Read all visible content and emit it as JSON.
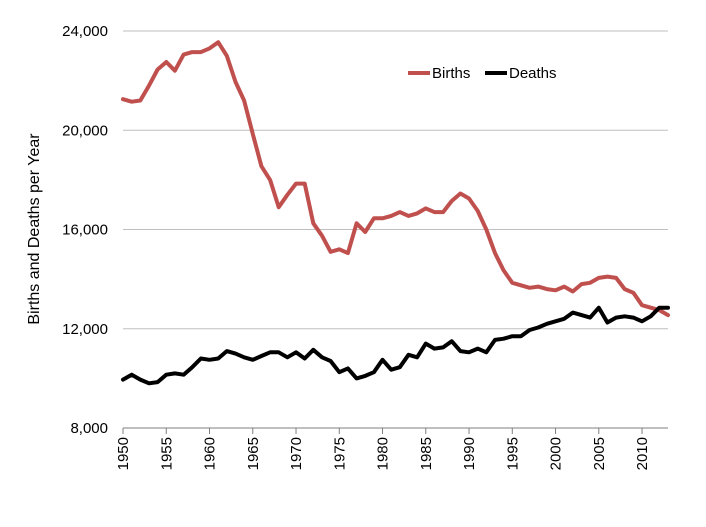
{
  "chart_data": {
    "type": "line",
    "title": "",
    "xlabel": "",
    "ylabel": "Births and Deaths per Year",
    "xlim": [
      1950,
      2013
    ],
    "ylim": [
      8000,
      24000
    ],
    "x_ticks": [
      1950,
      1955,
      1960,
      1965,
      1970,
      1975,
      1980,
      1985,
      1990,
      1995,
      2000,
      2005,
      2010
    ],
    "x_tick_labels": [
      "1950",
      "1955",
      "1960",
      "1965",
      "1970",
      "1975",
      "1980",
      "1985",
      "1990",
      "1995",
      "2000",
      "2005",
      "2010"
    ],
    "y_ticks": [
      8000,
      12000,
      16000,
      20000,
      24000
    ],
    "y_tick_labels": [
      "8,000",
      "12,000",
      "16,000",
      "20,000",
      "24,000"
    ],
    "grid": "horizontal",
    "legend_position": "top-right",
    "x": [
      1950,
      1951,
      1952,
      1953,
      1954,
      1955,
      1956,
      1957,
      1958,
      1959,
      1960,
      1961,
      1962,
      1963,
      1964,
      1965,
      1966,
      1967,
      1968,
      1969,
      1970,
      1971,
      1972,
      1973,
      1974,
      1975,
      1976,
      1977,
      1978,
      1979,
      1980,
      1981,
      1982,
      1983,
      1984,
      1985,
      1986,
      1987,
      1988,
      1989,
      1990,
      1991,
      1992,
      1993,
      1994,
      1995,
      1996,
      1997,
      1998,
      1999,
      2000,
      2001,
      2002,
      2003,
      2004,
      2005,
      2006,
      2007,
      2008,
      2009,
      2010,
      2011,
      2012,
      2013
    ],
    "series": [
      {
        "name": "Births",
        "color": "#c0504d",
        "values": [
          21250,
          21150,
          21200,
          21800,
          22450,
          22750,
          22400,
          23050,
          23150,
          23150,
          23300,
          23550,
          23000,
          21950,
          21200,
          19850,
          18550,
          18000,
          16900,
          17400,
          17850,
          17850,
          16250,
          15750,
          15100,
          15200,
          15050,
          16250,
          15900,
          16450,
          16450,
          16550,
          16700,
          16550,
          16650,
          16850,
          16700,
          16700,
          17150,
          17450,
          17250,
          16750,
          16000,
          15050,
          14350,
          13850,
          13750,
          13650,
          13700,
          13600,
          13550,
          13700,
          13500,
          13800,
          13850,
          14050,
          14100,
          14050,
          13600,
          13450,
          12950,
          12850,
          12750,
          12550
        ]
      },
      {
        "name": "Deaths",
        "color": "#000000",
        "values": [
          9950,
          10150,
          9950,
          9800,
          9850,
          10150,
          10200,
          10150,
          10450,
          10800,
          10750,
          10800,
          11100,
          11000,
          10850,
          10750,
          10900,
          11050,
          11050,
          10850,
          11050,
          10800,
          11150,
          10850,
          10700,
          10250,
          10400,
          10000,
          10100,
          10250,
          10750,
          10350,
          10450,
          10950,
          10850,
          11400,
          11200,
          11250,
          11500,
          11100,
          11050,
          11200,
          11050,
          11550,
          11600,
          11700,
          11700,
          11950,
          12050,
          12200,
          12300,
          12400,
          12650,
          12550,
          12450,
          12850,
          12250,
          12450,
          12500,
          12450,
          12300,
          12500,
          12850,
          12850
        ]
      }
    ]
  }
}
